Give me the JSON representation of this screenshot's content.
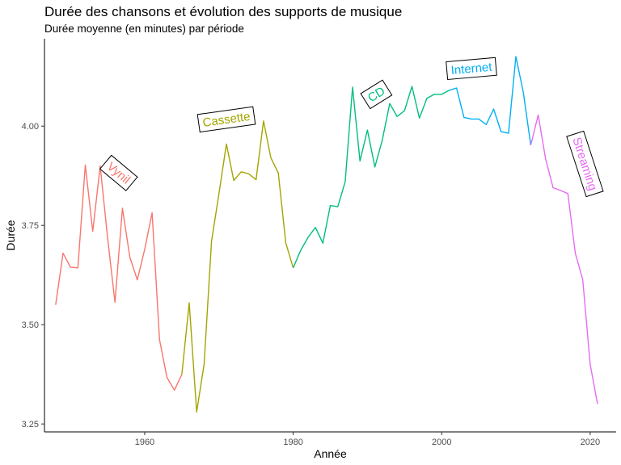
{
  "chart_data": {
    "type": "line",
    "title": "Durée des chansons et évolution des supports de musique",
    "subtitle": "Durée moyenne (en minutes) par période",
    "xlabel": "Année",
    "ylabel": "Durée",
    "xlim": [
      1946.5,
      2023.5
    ],
    "ylim": [
      3.23,
      4.22
    ],
    "x_ticks": [
      1960,
      1980,
      2000,
      2020
    ],
    "y_ticks": [
      3.25,
      3.5,
      3.75,
      4.0
    ],
    "y_tick_labels": [
      "3.25",
      "3.50",
      "3.75",
      "4.00"
    ],
    "grid": false,
    "legend": "none",
    "series": [
      {
        "name": "Vynil",
        "color": "#F8766D",
        "x": [
          1948,
          1949,
          1950,
          1951,
          1952,
          1953,
          1954,
          1955,
          1956,
          1957,
          1958,
          1959,
          1960,
          1961,
          1962,
          1963,
          1964,
          1965
        ],
        "y": [
          3.55,
          3.68,
          3.645,
          3.643,
          3.902,
          3.735,
          3.9,
          3.72,
          3.556,
          3.793,
          3.67,
          3.613,
          3.69,
          3.782,
          3.462,
          3.367,
          3.335,
          3.375
        ]
      },
      {
        "name": "Cassette",
        "color": "#A3A500",
        "x": [
          1965,
          1966,
          1967,
          1968,
          1969,
          1970,
          1971,
          1972,
          1973,
          1974,
          1975,
          1976,
          1977,
          1978,
          1979,
          1980
        ],
        "y": [
          3.375,
          3.555,
          3.28,
          3.4,
          3.71,
          3.83,
          3.955,
          3.863,
          3.885,
          3.88,
          3.865,
          4.013,
          3.92,
          3.882,
          3.706,
          3.643
        ]
      },
      {
        "name": "CD",
        "color": "#00BF7D",
        "x": [
          1980,
          1981,
          1982,
          1983,
          1984,
          1985,
          1986,
          1987,
          1988,
          1989,
          1990,
          1991,
          1992,
          1993,
          1994,
          1995,
          1996,
          1997,
          1998,
          1999,
          2000,
          2001
        ],
        "y": [
          3.643,
          3.687,
          3.72,
          3.745,
          3.705,
          3.8,
          3.797,
          3.86,
          4.098,
          3.912,
          3.99,
          3.897,
          3.965,
          4.057,
          4.024,
          4.039,
          4.1,
          4.02,
          4.07,
          4.08,
          4.08,
          4.09
        ]
      },
      {
        "name": "Internet",
        "color": "#00B0F6",
        "x": [
          2001,
          2002,
          2003,
          2004,
          2005,
          2006,
          2007,
          2008,
          2009,
          2010,
          2011,
          2012
        ],
        "y": [
          4.09,
          4.096,
          4.022,
          4.018,
          4.018,
          4.004,
          4.043,
          3.986,
          3.982,
          4.175,
          4.085,
          3.952
        ]
      },
      {
        "name": "Streaming",
        "color": "#E76BF3",
        "x": [
          2012,
          2013,
          2014,
          2015,
          2016,
          2017,
          2018,
          2019,
          2020,
          2021
        ],
        "y": [
          3.952,
          4.028,
          3.917,
          3.845,
          3.838,
          3.83,
          3.68,
          3.613,
          3.4,
          3.3
        ]
      }
    ],
    "annotations": [
      {
        "text": "Vynil",
        "x": 1956.5,
        "y": 3.882,
        "rotation": 40,
        "color": "#F8766D"
      },
      {
        "text": "Cassette",
        "x": 1971,
        "y": 4.017,
        "rotation": -8,
        "color": "#A3A500"
      },
      {
        "text": "CD",
        "x": 1991.2,
        "y": 4.08,
        "rotation": -32,
        "color": "#00BF7D"
      },
      {
        "text": "Internet",
        "x": 2004,
        "y": 4.145,
        "rotation": -5,
        "color": "#00B0F6"
      },
      {
        "text": "Streaming",
        "x": 2019.3,
        "y": 3.905,
        "rotation": 72,
        "color": "#E76BF3"
      }
    ]
  }
}
